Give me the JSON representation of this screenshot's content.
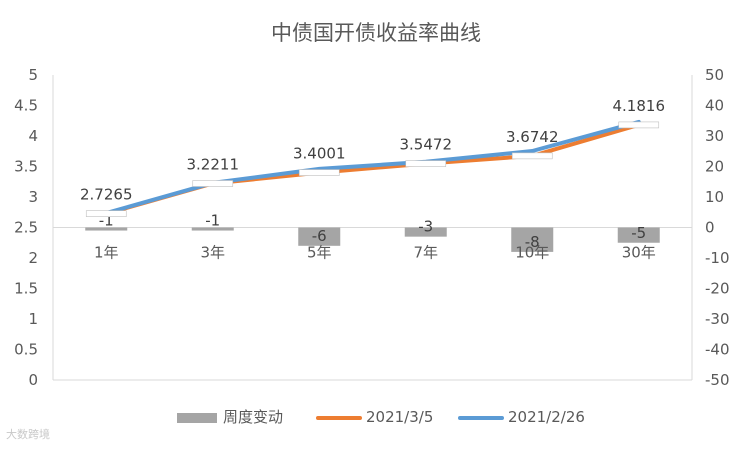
{
  "chart_data": {
    "type": "bar+line",
    "title": "中债国开债收益率曲线",
    "categories": [
      "1年",
      "3年",
      "5年",
      "7年",
      "10年",
      "30年"
    ],
    "y_left": {
      "min": 0,
      "max": 5,
      "step": 0.5,
      "ticks": [
        "0",
        "0.5",
        "1",
        "1.5",
        "2",
        "2.5",
        "3",
        "3.5",
        "4",
        "4.5",
        "5"
      ]
    },
    "y_right": {
      "min": -50,
      "max": 50,
      "step": 10,
      "ticks": [
        "-50",
        "-40",
        "-30",
        "-20",
        "-10",
        "0",
        "10",
        "20",
        "30",
        "40",
        "50"
      ]
    },
    "grid": false,
    "legend_position": "bottom",
    "series": [
      {
        "name": "周度变动",
        "type": "bar",
        "axis": "right",
        "values": [
          -1,
          -1,
          -6,
          -3,
          -8,
          -5
        ],
        "labels": [
          "-1",
          "-1",
          "-6",
          "-3",
          "-8",
          "-5"
        ],
        "color": "#a5a5a5"
      },
      {
        "name": "2021/3/5",
        "type": "line",
        "axis": "left",
        "values": [
          2.7265,
          3.2211,
          3.4001,
          3.5472,
          3.6742,
          4.1816
        ],
        "labels": [
          "2.7265",
          "3.2211",
          "3.4001",
          "3.5472",
          "3.6742",
          "4.1816"
        ],
        "color": "#ed7d31"
      },
      {
        "name": "2021/2/26",
        "type": "line",
        "axis": "left",
        "values": [
          2.7365,
          3.2311,
          3.4601,
          3.5772,
          3.7542,
          4.2316
        ],
        "color": "#5b9bd5"
      }
    ]
  },
  "watermark": "大数跨境"
}
